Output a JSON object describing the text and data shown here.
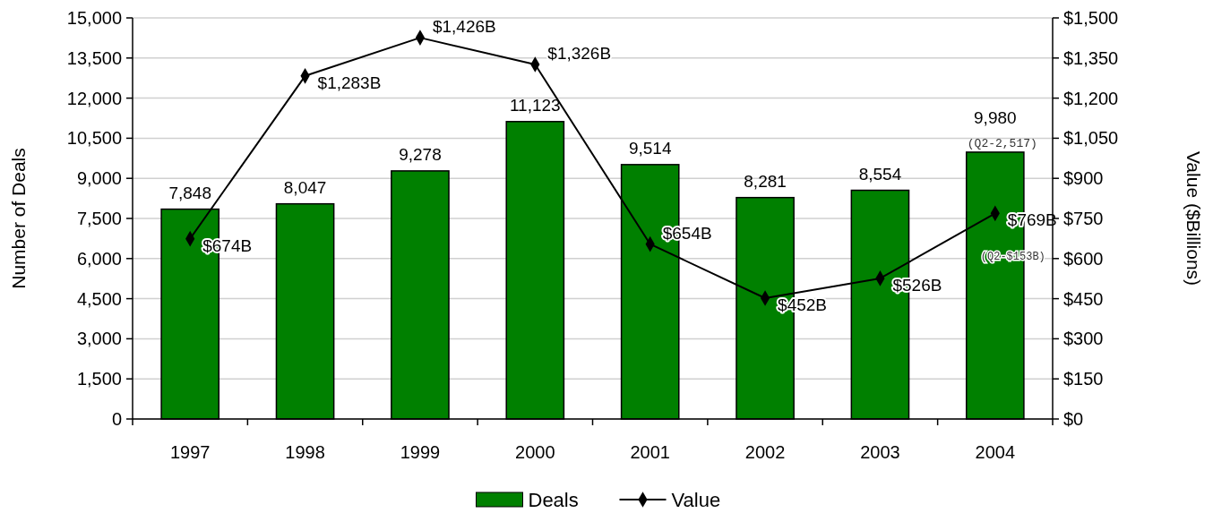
{
  "chart_data": {
    "type": "bar",
    "ylabel": "Number of Deals",
    "y2label": "Value ($Billions)",
    "categories": [
      "1997",
      "1998",
      "1999",
      "2000",
      "2001",
      "2002",
      "2003",
      "2004"
    ],
    "series": [
      {
        "name": "Deals",
        "color": "#008000",
        "values": [
          7848,
          8047,
          9278,
          11123,
          9514,
          8281,
          8554,
          9980
        ],
        "value_labels": [
          "7,848",
          "8,047",
          "9,278",
          "11,123",
          "9,514",
          "8,281",
          "8,554",
          "9,980"
        ]
      },
      {
        "name": "Value",
        "type": "line",
        "axis": "y2",
        "color": "#000000",
        "marker": "diamond",
        "values": [
          674,
          1283,
          1426,
          1326,
          654,
          452,
          526,
          769
        ],
        "value_labels": [
          "$674B",
          "$1,283B",
          "$1,426B",
          "$1,326B",
          "$654B",
          "$452B",
          "$526B",
          "$769B"
        ]
      }
    ],
    "ylim": [
      0,
      15000
    ],
    "yticks": [
      0,
      {
        "value": 1500,
        "label": "1,500"
      },
      {
        "value": 3000,
        "label": "3,000"
      },
      {
        "value": 4500,
        "label": "4,500"
      },
      {
        "value": 6000,
        "label": "6,000"
      },
      {
        "value": 7500,
        "label": "7,500"
      },
      {
        "value": 9000,
        "label": "9,000"
      },
      {
        "value": 10500,
        "label": "10,500"
      },
      {
        "value": 12000,
        "label": "12,000"
      },
      {
        "value": 13500,
        "label": "13,500"
      },
      {
        "value": 15000,
        "label": "15,000"
      }
    ],
    "y2lim": [
      0,
      1500
    ],
    "y2ticks": [
      {
        "value": 0,
        "label": "$0"
      },
      {
        "value": 150,
        "label": "$150"
      },
      {
        "value": 300,
        "label": "$300"
      },
      {
        "value": 450,
        "label": "$450"
      },
      {
        "value": 600,
        "label": "$600"
      },
      {
        "value": 750,
        "label": "$750"
      },
      {
        "value": 900,
        "label": "$900"
      },
      {
        "value": 1050,
        "label": "$1,050"
      },
      {
        "value": 1200,
        "label": "$1,200"
      },
      {
        "value": 1350,
        "label": "$1,350"
      },
      {
        "value": 1500,
        "label": "$1,500"
      }
    ],
    "annotations": [
      {
        "text": "(Q2-2,517)",
        "x": "2004",
        "y": 9980
      },
      "(Q2-$153B)"
    ],
    "grid": "y",
    "legend": "bottom"
  }
}
